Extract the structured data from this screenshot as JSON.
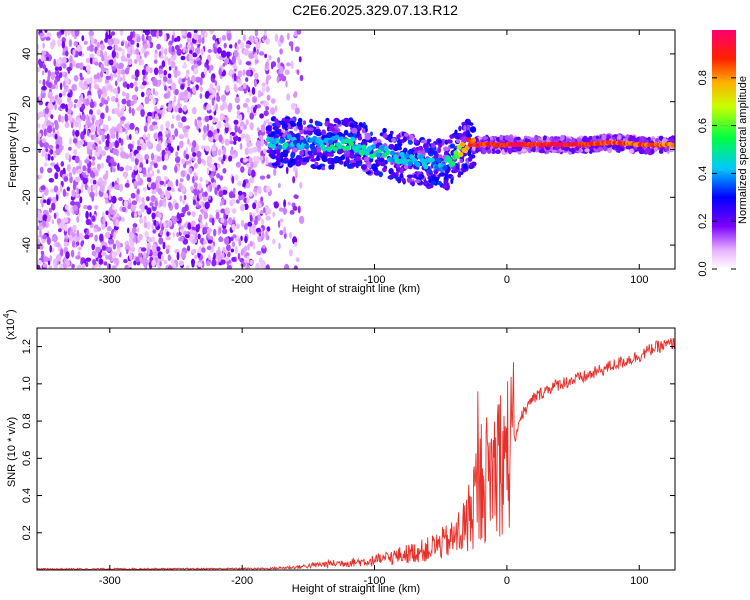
{
  "title": "C2E6.2025.329.07.13.R12",
  "chart_data": [
    {
      "type": "heatmap",
      "xlabel": "Height of straight line (km)",
      "ylabel": "Frequency (Hz)",
      "xlim": [
        -355,
        127
      ],
      "ylim": [
        -50,
        50
      ],
      "xticks": [
        -300,
        -200,
        -100,
        0,
        100
      ],
      "yticks": [
        -40,
        -20,
        0,
        20,
        40
      ],
      "colorbar": {
        "label": "Normalized spectral amplitude",
        "range": [
          0.0,
          1.0
        ],
        "ticks": [
          0.0,
          0.2,
          0.4,
          0.6,
          0.8
        ]
      },
      "noise_region_x": [
        -355,
        -180
      ],
      "ridge": {
        "x": [
          -180,
          -160,
          -140,
          -120,
          -100,
          -80,
          -60,
          -45,
          -30,
          -20,
          0,
          20,
          40,
          60,
          80,
          100,
          127
        ],
        "freq_hz": [
          3,
          3,
          2,
          3,
          -1,
          -3,
          -6,
          -6,
          2,
          2,
          2,
          2,
          2,
          2,
          3,
          2,
          2
        ],
        "amplitude": [
          0.45,
          0.4,
          0.4,
          0.5,
          0.45,
          0.45,
          0.4,
          0.4,
          0.85,
          0.9,
          0.9,
          0.9,
          0.95,
          0.9,
          0.85,
          0.85,
          0.85
        ]
      }
    },
    {
      "type": "line",
      "xlabel": "Height of straight line (km)",
      "ylabel": "SNR (10 * v/v)",
      "y_scale_note": "(x10",
      "y_scale_exp": "4",
      "xlim": [
        -355,
        127
      ],
      "ylim": [
        0,
        1.3
      ],
      "xticks": [
        -300,
        -200,
        -100,
        0,
        100
      ],
      "yticks": [
        0.2,
        0.4,
        0.6,
        0.8,
        1.0,
        1.2
      ],
      "series": [
        {
          "name": "SNR",
          "color": "#e8302a",
          "x": [
            -355,
            -250,
            -180,
            -160,
            -140,
            -120,
            -100,
            -80,
            -60,
            -50,
            -40,
            -30,
            -25,
            -20,
            -15,
            -10,
            -5,
            0,
            5,
            10,
            20,
            30,
            40,
            60,
            80,
            100,
            110,
            127
          ],
          "y": [
            0.005,
            0.006,
            0.008,
            0.015,
            0.03,
            0.04,
            0.05,
            0.08,
            0.11,
            0.14,
            0.17,
            0.25,
            0.38,
            0.45,
            0.5,
            0.55,
            0.6,
            0.62,
            0.68,
            0.82,
            0.92,
            0.97,
            1.0,
            1.04,
            1.1,
            1.15,
            1.19,
            1.22
          ]
        }
      ]
    }
  ]
}
